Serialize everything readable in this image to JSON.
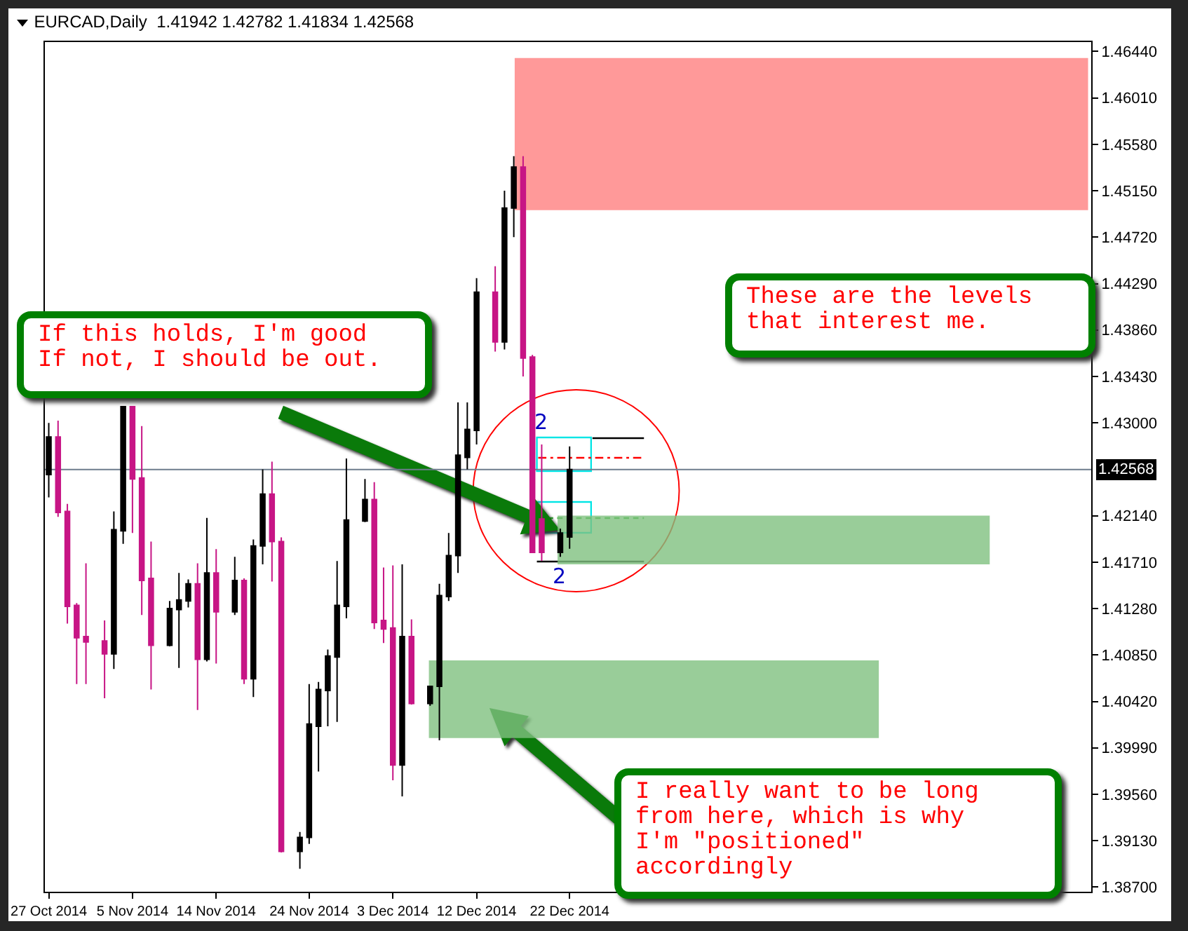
{
  "chart_data": {
    "type": "candlestick",
    "title": "EURCAD,Daily  1.41942 1.42782 1.41834 1.42568",
    "x": [
      "2014-10-27",
      "2014-10-28",
      "2014-10-29",
      "2014-10-30",
      "2014-10-31",
      "2014-11-02",
      "2014-11-03",
      "2014-11-04",
      "2014-11-05",
      "2014-11-06",
      "2014-11-07",
      "2014-11-09",
      "2014-11-10",
      "2014-11-11",
      "2014-11-12",
      "2014-11-13",
      "2014-11-14",
      "2014-11-16",
      "2014-11-17",
      "2014-11-18",
      "2014-11-19",
      "2014-11-20",
      "2014-11-21",
      "2014-11-23",
      "2014-11-24",
      "2014-11-25",
      "2014-11-26",
      "2014-11-27",
      "2014-11-28",
      "2014-11-30",
      "2014-12-01",
      "2014-12-02",
      "2014-12-03",
      "2014-12-04",
      "2014-12-05",
      "2014-12-07",
      "2014-12-08",
      "2014-12-09",
      "2014-12-10",
      "2014-12-11",
      "2014-12-12",
      "2014-12-14",
      "2014-12-15",
      "2014-12-16",
      "2014-12-17",
      "2014-12-18",
      "2014-12-19",
      "2014-12-21",
      "2014-12-22"
    ],
    "ohlc": [
      [
        1.4252,
        1.43,
        1.4231,
        1.4287
      ],
      [
        1.4287,
        1.4302,
        1.4213,
        1.4217
      ],
      [
        1.4218,
        1.4225,
        1.4114,
        1.413
      ],
      [
        1.4131,
        1.4133,
        1.4058,
        1.4101
      ],
      [
        1.4102,
        1.417,
        1.4058,
        1.4097
      ],
      [
        1.4098,
        1.4117,
        1.4045,
        1.4086
      ],
      [
        1.4086,
        1.4218,
        1.4072,
        1.4201
      ],
      [
        1.42,
        1.4315,
        1.4188,
        1.4315
      ],
      [
        1.4315,
        1.4315,
        1.4198,
        1.4248
      ],
      [
        1.4249,
        1.4297,
        1.4122,
        1.4154
      ],
      [
        1.4156,
        1.419,
        1.4053,
        1.4094
      ],
      [
        1.4094,
        1.4135,
        1.4093,
        1.4128
      ],
      [
        1.4127,
        1.4161,
        1.4073,
        1.4136
      ],
      [
        1.4135,
        1.4155,
        1.4129,
        1.4151
      ],
      [
        1.4151,
        1.417,
        1.4034,
        1.4081
      ],
      [
        1.4081,
        1.4212,
        1.4079,
        1.4161
      ],
      [
        1.4161,
        1.4183,
        1.4077,
        1.4125
      ],
      [
        1.4125,
        1.4176,
        1.4122,
        1.4154
      ],
      [
        1.4154,
        1.4156,
        1.4058,
        1.4063
      ],
      [
        1.4063,
        1.4192,
        1.4046,
        1.4186
      ],
      [
        1.4186,
        1.4257,
        1.4169,
        1.4234
      ],
      [
        1.4234,
        1.4264,
        1.4153,
        1.419
      ],
      [
        1.419,
        1.4194,
        1.3902,
        1.3903
      ],
      [
        1.3903,
        1.3921,
        1.3887,
        1.3916
      ],
      [
        1.3916,
        1.4058,
        1.391,
        1.4021
      ],
      [
        1.4019,
        1.406,
        1.3977,
        1.4053
      ],
      [
        1.4052,
        1.409,
        1.4019,
        1.4084
      ],
      [
        1.4083,
        1.4172,
        1.4023,
        1.4131
      ],
      [
        1.413,
        1.4267,
        1.4119,
        1.421
      ],
      [
        1.4209,
        1.4248,
        1.4208,
        1.4229
      ],
      [
        1.4229,
        1.4245,
        1.4109,
        1.4115
      ],
      [
        1.4117,
        1.4166,
        1.4096,
        1.4109
      ],
      [
        1.411,
        1.4168,
        1.3969,
        1.3983
      ],
      [
        1.3983,
        1.4169,
        1.3954,
        1.4102
      ],
      [
        1.4102,
        1.4118,
        1.4039,
        1.404
      ],
      [
        1.404,
        1.4056,
        1.4038,
        1.4056
      ],
      [
        1.4056,
        1.4151,
        1.4006,
        1.414
      ],
      [
        1.4139,
        1.4198,
        1.4135,
        1.4177
      ],
      [
        1.4177,
        1.4319,
        1.4161,
        1.427
      ],
      [
        1.4268,
        1.4319,
        1.4257,
        1.4294
      ],
      [
        1.4293,
        1.4434,
        1.428,
        1.4421
      ],
      [
        1.4421,
        1.4445,
        1.4366,
        1.4375
      ],
      [
        1.4375,
        1.4515,
        1.4368,
        1.4499
      ],
      [
        1.4499,
        1.4547,
        1.4472,
        1.4537
      ],
      [
        1.4537,
        1.4547,
        1.4343,
        1.436
      ],
      [
        1.4361,
        1.4363,
        1.418,
        1.418
      ],
      [
        1.4211,
        1.428,
        1.4172,
        1.418
      ],
      [
        1.418,
        1.4202,
        1.4176,
        1.4198
      ],
      [
        1.41942,
        1.42782,
        1.41834,
        1.42568
      ]
    ],
    "colors": [
      "#000000",
      "#c71585",
      "#c71585",
      "#c71585",
      "#c71585",
      "#c71585",
      "#000000",
      "#000000",
      "#c71585",
      "#c71585",
      "#c71585",
      "#000000",
      "#000000",
      "#000000",
      "#c71585",
      "#000000",
      "#c71585",
      "#000000",
      "#c71585",
      "#000000",
      "#000000",
      "#c71585",
      "#c71585",
      "#000000",
      "#000000",
      "#000000",
      "#000000",
      "#000000",
      "#000000",
      "#000000",
      "#c71585",
      "#c71585",
      "#c71585",
      "#000000",
      "#c71585",
      "#000000",
      "#000000",
      "#000000",
      "#000000",
      "#000000",
      "#000000",
      "#c71585",
      "#000000",
      "#000000",
      "#c71585",
      "#c71585",
      "#c71585",
      "#000000",
      "#000000"
    ],
    "xlim": [
      "2014-10-26T14:00",
      "2015-02-16T02:00"
    ],
    "xticks": [
      {
        "value": "2014-10-27",
        "label": "27 Oct 2014"
      },
      {
        "value": "2014-11-05",
        "label": "5 Nov 2014"
      },
      {
        "value": "2014-11-14",
        "label": "14 Nov 2014"
      },
      {
        "value": "2014-11-24",
        "label": "24 Nov 2014"
      },
      {
        "value": "2014-12-03",
        "label": "3 Dec 2014"
      },
      {
        "value": "2014-12-12",
        "label": "12 Dec 2014"
      },
      {
        "value": "2014-12-22",
        "label": "22 Dec 2014"
      }
    ],
    "ylim": [
      1.38657,
      1.46527
    ],
    "yticks": [
      {
        "value": 1.387,
        "label": "1.38700"
      },
      {
        "value": 1.3913,
        "label": "1.39130"
      },
      {
        "value": 1.3956,
        "label": "1.39560"
      },
      {
        "value": 1.3999,
        "label": "1.39990"
      },
      {
        "value": 1.4042,
        "label": "1.40420"
      },
      {
        "value": 1.4085,
        "label": "1.40850"
      },
      {
        "value": 1.4128,
        "label": "1.41280"
      },
      {
        "value": 1.4171,
        "label": "1.41710"
      },
      {
        "value": 1.4214,
        "label": "1.42140"
      },
      {
        "value": 1.43,
        "label": "1.43000"
      },
      {
        "value": 1.4343,
        "label": "1.43430"
      },
      {
        "value": 1.4386,
        "label": "1.43860"
      },
      {
        "value": 1.4429,
        "label": "1.44290"
      },
      {
        "value": 1.4472,
        "label": "1.44720"
      },
      {
        "value": 1.4515,
        "label": "1.45150"
      },
      {
        "value": 1.4558,
        "label": "1.45580"
      },
      {
        "value": 1.4601,
        "label": "1.46010"
      },
      {
        "value": 1.4644,
        "label": "1.46440"
      }
    ],
    "ref_lines": [
      {
        "axis": "y",
        "value": 1.42568,
        "label": "1.42568",
        "color": "#6d7b8d"
      }
    ],
    "bands": [
      {
        "axis": "y",
        "from": 1.4497,
        "to": 1.4638,
        "color": "#ff8080"
      },
      {
        "axis": "y",
        "from": 1.4169,
        "to": 1.4214,
        "color": "#80c080"
      },
      {
        "axis": "y",
        "from": 1.4008,
        "to": 1.408,
        "color": "#80c080"
      }
    ],
    "annotations": [
      "If this holds, I'm good\nIf not, I should be out.",
      "These are the levels\nthat interest me.",
      "I really want to be long\nfrom here, which is why\nI'm \"positioned\"\naccordingly",
      {
        "text": "2",
        "x": "2014-12-19",
        "y": 1.4286
      },
      {
        "text": "2",
        "x": "2014-12-21",
        "y": 1.4172
      }
    ],
    "grid": false
  }
}
